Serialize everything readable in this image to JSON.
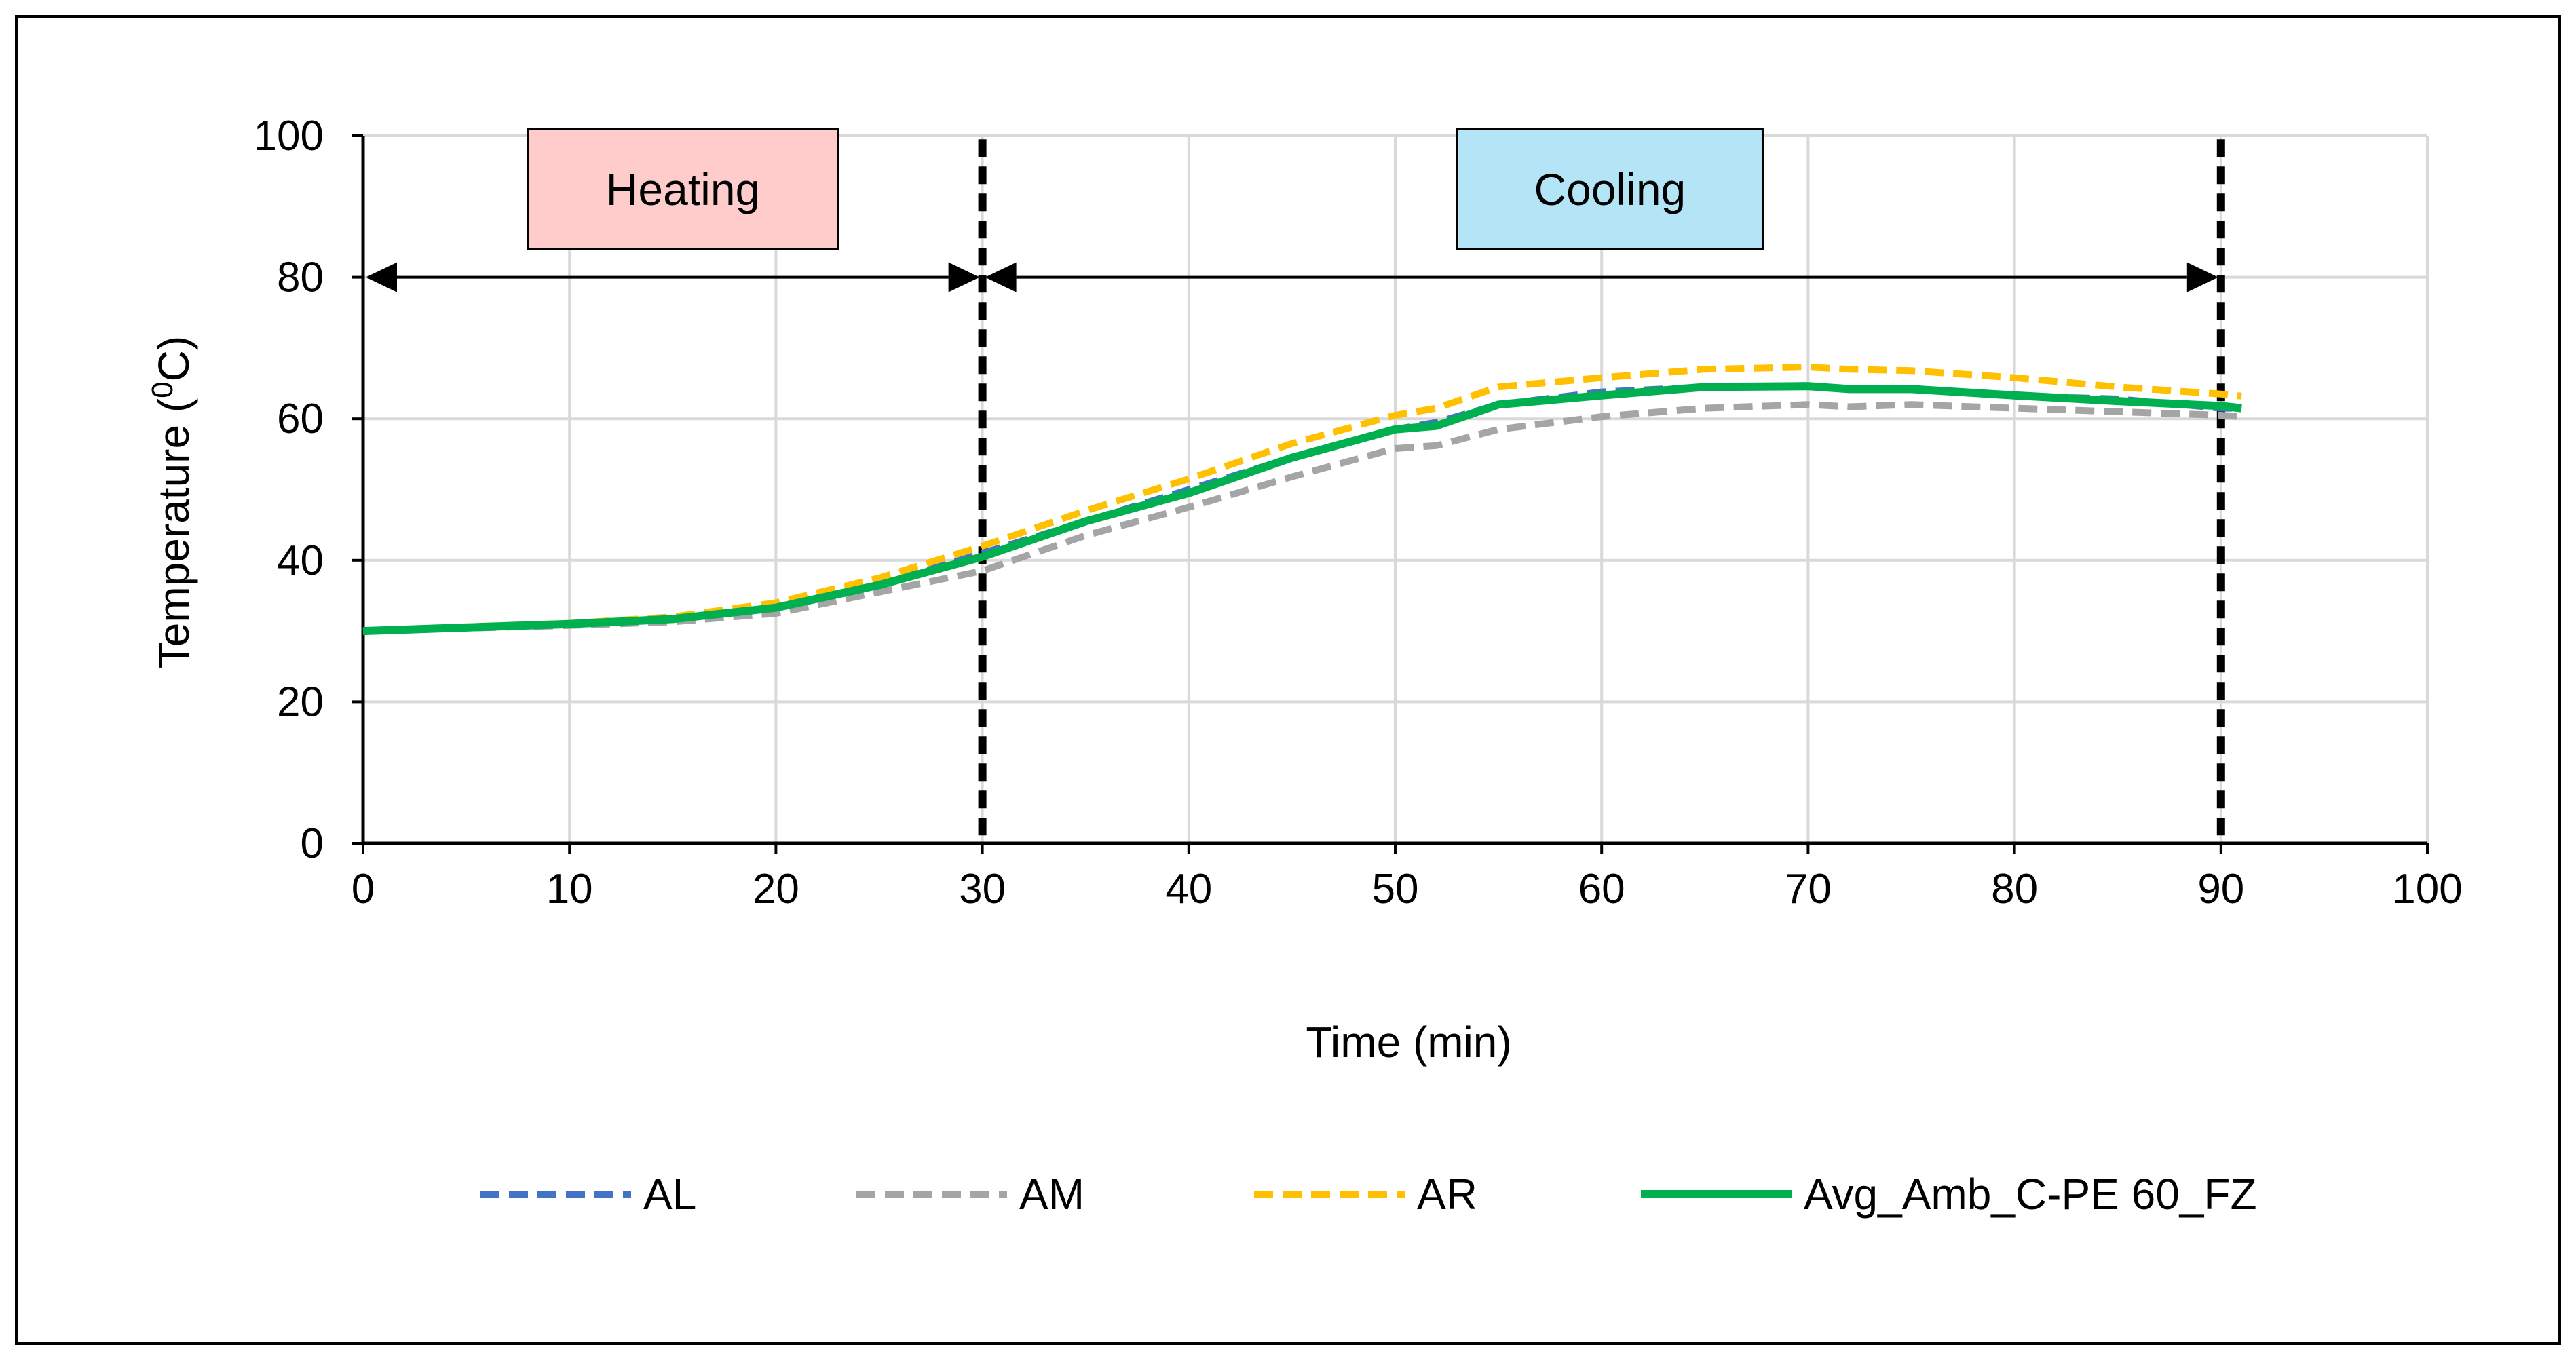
{
  "chart_data": {
    "type": "line",
    "title": "",
    "xlabel": "Time (min)",
    "ylabel_main": "Temperature (",
    "ylabel_sup": "0",
    "ylabel_tail": "C)",
    "xlim": [
      0,
      100
    ],
    "ylim": [
      0,
      100
    ],
    "xticks": [
      0,
      10,
      20,
      30,
      40,
      50,
      60,
      70,
      80,
      90,
      100
    ],
    "yticks": [
      0,
      20,
      40,
      60,
      80,
      100
    ],
    "x_tick_labels": [
      "0",
      "10",
      "20",
      "30",
      "40",
      "50",
      "60",
      "70",
      "80",
      "90",
      "100"
    ],
    "y_tick_labels": [
      "0",
      "20",
      "40",
      "60",
      "80",
      "100"
    ],
    "grid": true,
    "legend_position": "bottom",
    "phase_lines_x": [
      30,
      90
    ],
    "phases": [
      {
        "label": "Heating",
        "x_start": 0,
        "x_end": 30,
        "box_x": [
          8,
          23
        ],
        "box_y": [
          84,
          101
        ],
        "arrow_y": 80,
        "color": "#FFCCCC"
      },
      {
        "label": "Cooling",
        "x_start": 30,
        "x_end": 90,
        "box_x": [
          53,
          67.8
        ],
        "box_y": [
          84,
          101
        ],
        "arrow_y": 80,
        "color": "#B3E5F7"
      }
    ],
    "x": [
      0,
      5,
      10,
      15,
      20,
      25,
      30,
      35,
      40,
      45,
      50,
      52,
      55,
      60,
      65,
      70,
      72,
      75,
      80,
      85,
      90,
      91
    ],
    "series": [
      {
        "name": "AL",
        "color": "#4472C4",
        "style": "dashed",
        "values": [
          30,
          30.5,
          31,
          31.8,
          33.5,
          36.5,
          41,
          45.5,
          50,
          54.5,
          58.5,
          59.5,
          62,
          63.8,
          64.5,
          64.7,
          64.2,
          64.3,
          63.2,
          62.8,
          61.5,
          61.5
        ]
      },
      {
        "name": "AM",
        "color": "#A5A5A5",
        "style": "dashed",
        "values": [
          30,
          30.4,
          30.8,
          31.3,
          32.5,
          35.5,
          38.5,
          43.5,
          47.5,
          51.8,
          55.8,
          56.2,
          58.5,
          60.3,
          61.5,
          62,
          61.7,
          62,
          61.5,
          61,
          60.5,
          60.3
        ]
      },
      {
        "name": "AR",
        "color": "#FFC000",
        "style": "dashed",
        "values": [
          30,
          30.6,
          31.1,
          32,
          34,
          37.5,
          42,
          47,
          51.5,
          56.5,
          60.5,
          61.5,
          64.5,
          65.8,
          67,
          67.3,
          67,
          66.8,
          65.8,
          64.5,
          63.5,
          63.2
        ]
      },
      {
        "name": "Avg_Amb_C-PE 60_FZ",
        "color": "#00B050",
        "style": "solid",
        "values": [
          30,
          30.5,
          31,
          31.7,
          33.3,
          36.5,
          40.5,
          45.5,
          49.5,
          54.5,
          58.5,
          59,
          62,
          63.3,
          64.5,
          64.6,
          64.2,
          64.2,
          63.3,
          62.5,
          61.8,
          61.5
        ]
      }
    ]
  }
}
